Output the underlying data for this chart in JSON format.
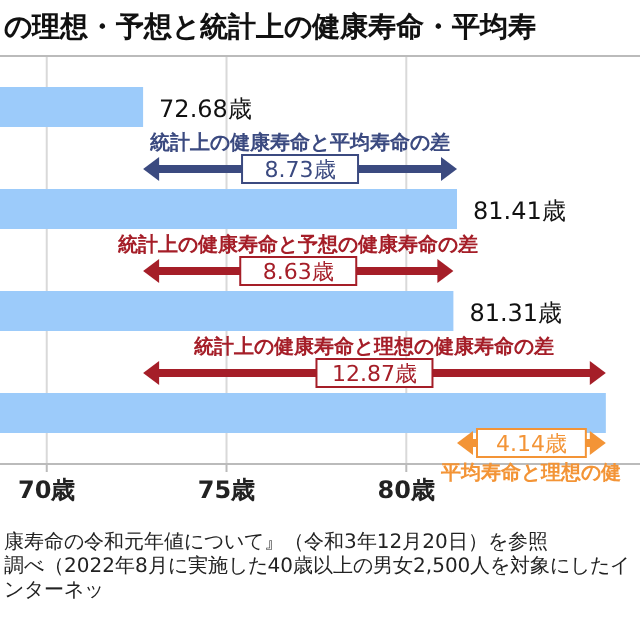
{
  "chart_data": {
    "type": "bar",
    "orientation": "horizontal",
    "title": "の理想・予想と統計上の健康寿命・平均寿",
    "categories": [
      null,
      null,
      null,
      null
    ],
    "values": [
      72.68,
      81.41,
      81.31,
      85.55
    ],
    "value_labels": [
      "72.68歳",
      "81.41歳",
      "81.31歳",
      null
    ],
    "color": "#9ccbfa",
    "xlim": [
      68.7,
      86.5
    ],
    "xticks": [
      {
        "value": 70,
        "label": "70歳"
      },
      {
        "value": 75,
        "label": "75歳"
      },
      {
        "value": 80,
        "label": "80歳"
      }
    ],
    "grid": "x",
    "tick_labels": "x",
    "annotations": [
      "統計上の健康寿命と平均寿命の差",
      "8.73歳",
      "統計上の健康寿命と予想の健康寿命の差",
      "8.63歳",
      "統計上の健康寿命と理想の健康寿命の差",
      "12.87歳",
      "平均寿命と理想の健",
      "4.14歳",
      "康寿命の令和元年値について』（令和3年12月20日）を参照",
      "調べ（2022年8月に実施した40歳以上の男女2,500人を対象にしたインターネッ"
    ]
  }
}
